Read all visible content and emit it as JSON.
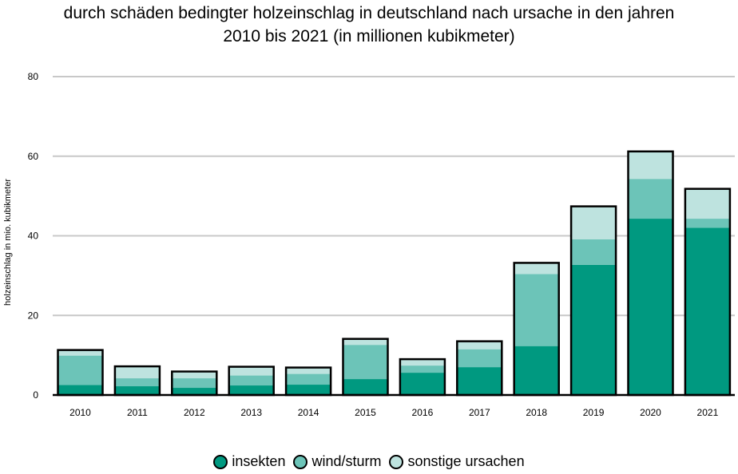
{
  "chart_data": {
    "type": "bar",
    "stacked": true,
    "title_line1": "durch schäden bedingter holzeinschlag in deutschland nach ursache in den jahren",
    "title_line2": "2010 bis 2021 (in millionen kubikmeter)",
    "ylabel": "holzeinschlag in mio. kubikmeter",
    "xlabel": "",
    "ylim": [
      0,
      80
    ],
    "yticks": [
      0,
      20,
      40,
      60,
      80
    ],
    "grid": true,
    "legend_position": "bottom",
    "categories": [
      "2010",
      "2011",
      "2012",
      "2013",
      "2014",
      "2015",
      "2016",
      "2017",
      "2018",
      "2019",
      "2020",
      "2021"
    ],
    "series": [
      {
        "name": "insekten",
        "color": "#009980",
        "values": [
          2.5,
          2.2,
          1.8,
          2.4,
          2.6,
          4.0,
          5.6,
          7.0,
          12.3,
          32.7,
          44.3,
          42.0
        ]
      },
      {
        "name": "wind/sturm",
        "color": "#6cc4b8",
        "values": [
          7.4,
          2.0,
          2.4,
          2.5,
          2.7,
          8.6,
          1.8,
          4.5,
          18.1,
          6.4,
          10.0,
          2.3
        ]
      },
      {
        "name": "sonstige ursachen",
        "color": "#bee3df",
        "values": [
          1.4,
          3.0,
          1.7,
          2.2,
          1.6,
          1.5,
          1.6,
          2.0,
          2.8,
          8.3,
          6.9,
          7.5
        ]
      }
    ]
  }
}
